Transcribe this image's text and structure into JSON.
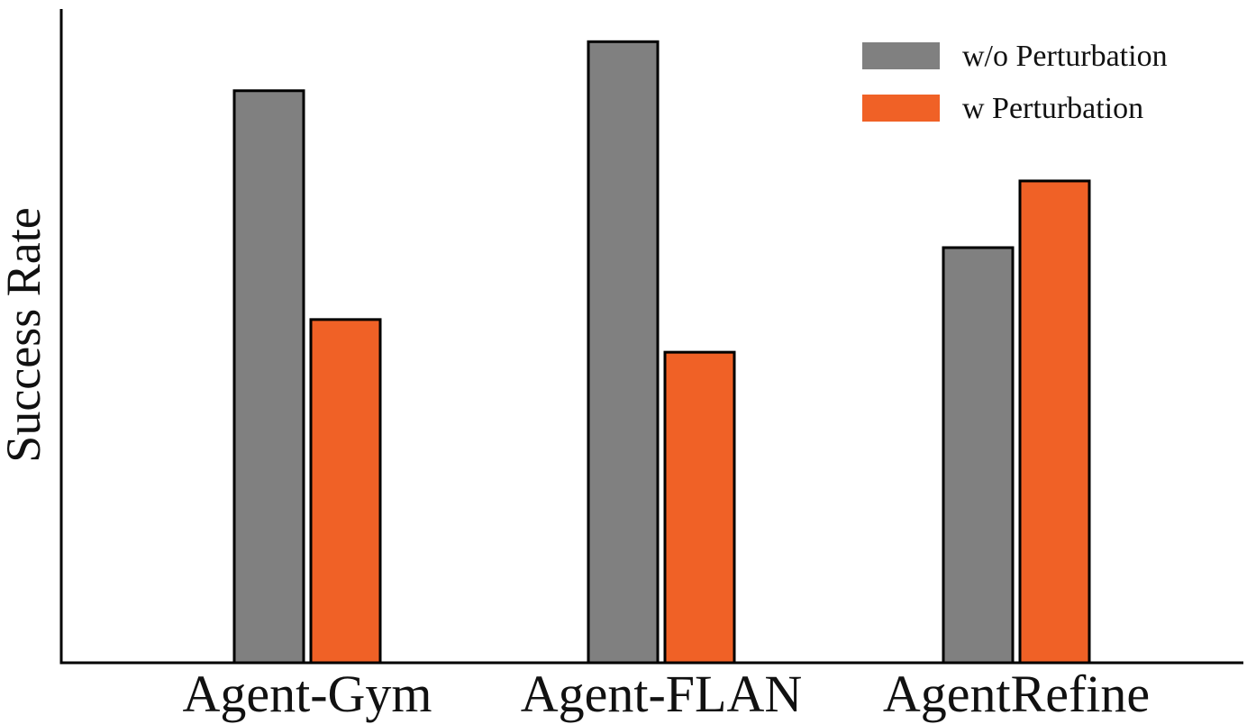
{
  "chart_data": {
    "type": "bar",
    "title": "",
    "xlabel": "",
    "ylabel": "Success Rate",
    "categories": [
      "Agent-Gym",
      "Agent-FLAN",
      "AgentRefine"
    ],
    "series": [
      {
        "name": "w/o Perturbation",
        "color": "#808080",
        "values": [
          87.5,
          95.0,
          63.5
        ]
      },
      {
        "name": "w Perturbation",
        "color": "#F06126",
        "values": [
          52.5,
          47.5,
          73.7
        ]
      }
    ],
    "ylim": [
      0,
      100
    ],
    "grid": false,
    "y_ticks_shown": false,
    "legend": {
      "position": "top-right",
      "entries": [
        "w/o Perturbation",
        "w Perturbation"
      ]
    }
  }
}
